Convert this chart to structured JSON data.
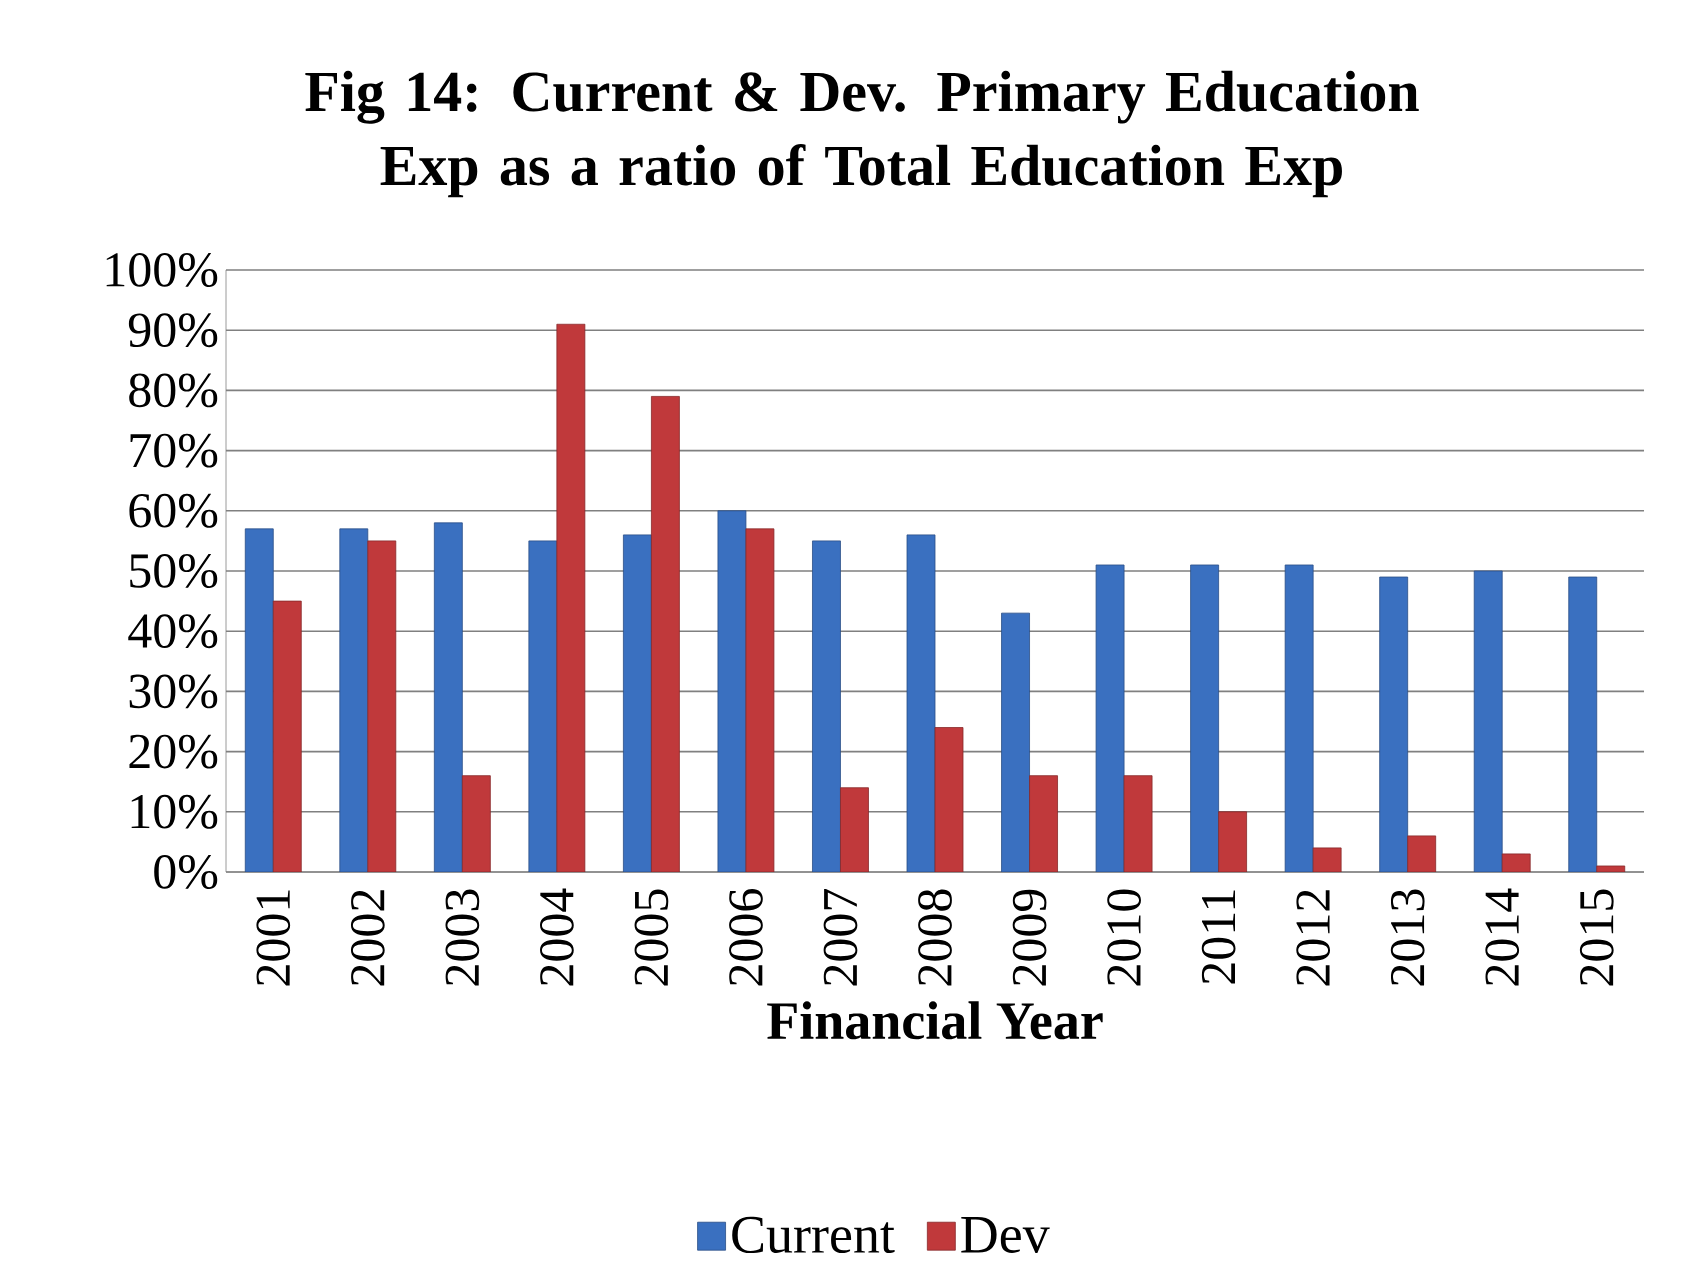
{
  "chart_data": {
    "type": "bar",
    "title": "Fig 14: Current & Dev. Primary Education Exp as a ratio of Total Education Exp",
    "xlabel": "Financial Year",
    "categories": [
      "2001",
      "2002",
      "2003",
      "2004",
      "2005",
      "2006",
      "2007",
      "2008",
      "2009",
      "2010",
      "2011",
      "2012",
      "2013",
      "2014",
      "2015"
    ],
    "series": [
      {
        "name": "Current",
        "color": "#3a70c0",
        "values": [
          57,
          57,
          58,
          55,
          56,
          60,
          55,
          56,
          43,
          51,
          51,
          51,
          49,
          50,
          49
        ]
      },
      {
        "name": "Dev",
        "color": "#c0393b",
        "values": [
          45,
          55,
          16,
          91,
          79,
          57,
          14,
          24,
          16,
          16,
          10,
          4,
          6,
          3,
          1
        ]
      }
    ],
    "ylim": [
      0,
      100
    ],
    "yticks": [
      {
        "value": 0,
        "label": "0%"
      },
      {
        "value": 10,
        "label": "10%"
      },
      {
        "value": 20,
        "label": "20%"
      },
      {
        "value": 30,
        "label": "30%"
      },
      {
        "value": 40,
        "label": "40%"
      },
      {
        "value": 50,
        "label": "50%"
      },
      {
        "value": 60,
        "label": "60%"
      },
      {
        "value": 70,
        "label": "70%"
      },
      {
        "value": 80,
        "label": "80%"
      },
      {
        "value": 90,
        "label": "90%"
      },
      {
        "value": 100,
        "label": "100%"
      }
    ],
    "grid": "y",
    "legend": "bottom"
  }
}
